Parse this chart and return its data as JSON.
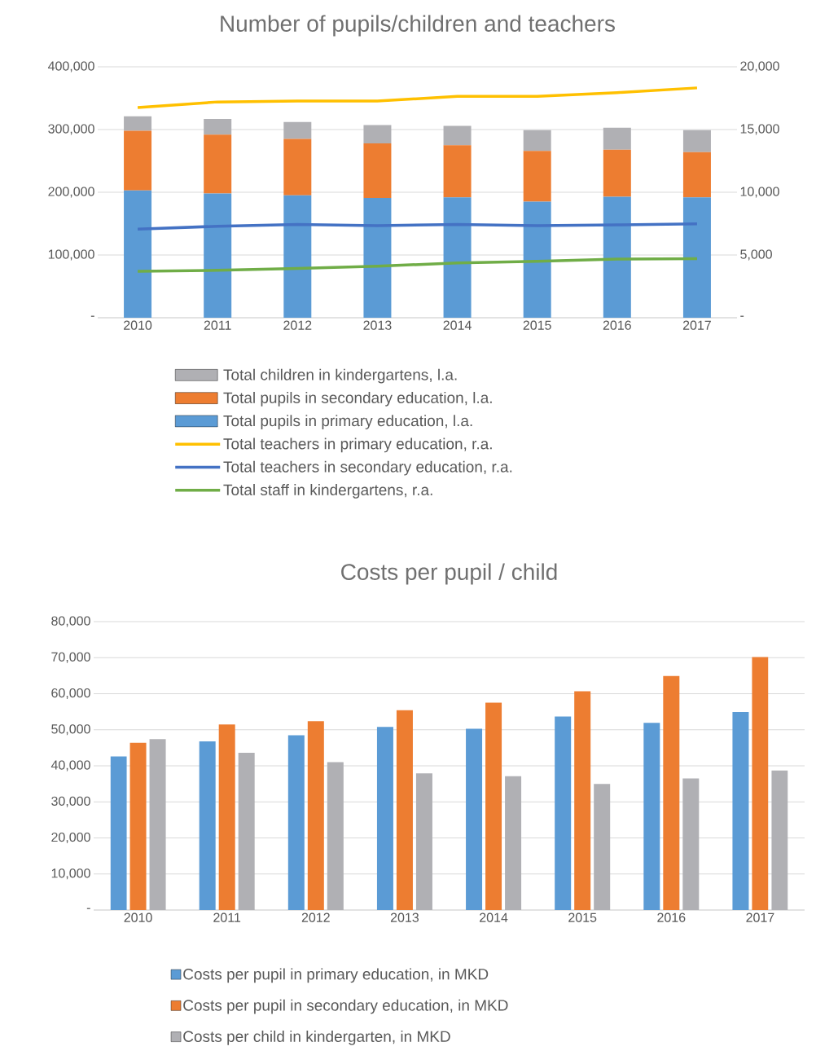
{
  "chart_data": [
    {
      "type": "bar",
      "stacked": true,
      "title": "Number of pupils/children and teachers",
      "categories": [
        "2010",
        "2011",
        "2012",
        "2013",
        "2014",
        "2015",
        "2016",
        "2017"
      ],
      "series": [
        {
          "name": "Total pupils in primary education, l.a.",
          "color": "#5b9bd5",
          "values": [
            203000,
            198000,
            195000,
            191000,
            192000,
            185000,
            193000,
            192000
          ]
        },
        {
          "name": "Total pupils in secondary education, l.a.",
          "color": "#ed7d31",
          "values": [
            95000,
            94000,
            90000,
            87000,
            83000,
            81000,
            75000,
            72000
          ]
        },
        {
          "name": "Total children in kindergartens, l.a.",
          "color": "#b0b0b4",
          "values": [
            23000,
            25000,
            27000,
            29000,
            31000,
            33000,
            35000,
            35000
          ]
        },
        {
          "name": "Total teachers in primary education, r.a.",
          "type": "line",
          "axis": "y2",
          "color": "#ffc000",
          "values": [
            16750,
            17200,
            17270,
            17270,
            17650,
            17650,
            17940,
            18320
          ]
        },
        {
          "name": "Total teachers in secondary education, r.a.",
          "type": "line",
          "axis": "y2",
          "color": "#4472c4",
          "values": [
            7070,
            7290,
            7440,
            7330,
            7440,
            7330,
            7400,
            7480
          ]
        },
        {
          "name": "Total staff in kindergartens, r.a.",
          "type": "line",
          "axis": "y2",
          "color": "#70ad47",
          "values": [
            3700,
            3780,
            3930,
            4110,
            4370,
            4490,
            4670,
            4710
          ]
        }
      ],
      "ylim": [
        0,
        400000
      ],
      "yticks": [
        {
          "value": 0,
          "label": "-"
        },
        {
          "value": 100000,
          "label": "100,000"
        },
        {
          "value": 200000,
          "label": "200,000"
        },
        {
          "value": 300000,
          "label": "300,000"
        },
        {
          "value": 400000,
          "label": "400,000"
        }
      ],
      "y2lim": [
        0,
        20000
      ],
      "y2ticks": [
        {
          "value": 0,
          "label": "-"
        },
        {
          "value": 5000,
          "label": "5,000"
        },
        {
          "value": 10000,
          "label": "10,000"
        },
        {
          "value": 15000,
          "label": "15,000"
        },
        {
          "value": 20000,
          "label": "20,000"
        }
      ],
      "grid": "y",
      "legend": "bottom",
      "marker": "none"
    },
    {
      "type": "bar",
      "title": "Costs per pupil / child",
      "categories": [
        "2010",
        "2011",
        "2012",
        "2013",
        "2014",
        "2015",
        "2016",
        "2017"
      ],
      "series": [
        {
          "name": "Costs per pupil in primary education, in MKD",
          "color": "#5b9bd5",
          "values": [
            42600,
            46800,
            48500,
            50800,
            50300,
            53700,
            51900,
            54900
          ]
        },
        {
          "name": "Costs per pupil in secondary education, in MKD",
          "color": "#ed7d31",
          "values": [
            46400,
            51500,
            52400,
            55400,
            57500,
            60700,
            64900,
            70200
          ]
        },
        {
          "name": "Costs per child in kindergarten, in MKD",
          "color": "#b0b0b4",
          "values": [
            47400,
            43600,
            41000,
            37900,
            37100,
            35000,
            36500,
            38700
          ]
        }
      ],
      "ylim": [
        0,
        80000
      ],
      "yticks": [
        {
          "value": 0,
          "label": "-"
        },
        {
          "value": 10000,
          "label": "10,000"
        },
        {
          "value": 20000,
          "label": "20,000"
        },
        {
          "value": 30000,
          "label": "30,000"
        },
        {
          "value": 40000,
          "label": "40,000"
        },
        {
          "value": 50000,
          "label": "50,000"
        },
        {
          "value": 60000,
          "label": "60,000"
        },
        {
          "value": 70000,
          "label": "70,000"
        },
        {
          "value": 80000,
          "label": "80,000"
        }
      ],
      "grid": "y",
      "legend": "bottom"
    }
  ]
}
